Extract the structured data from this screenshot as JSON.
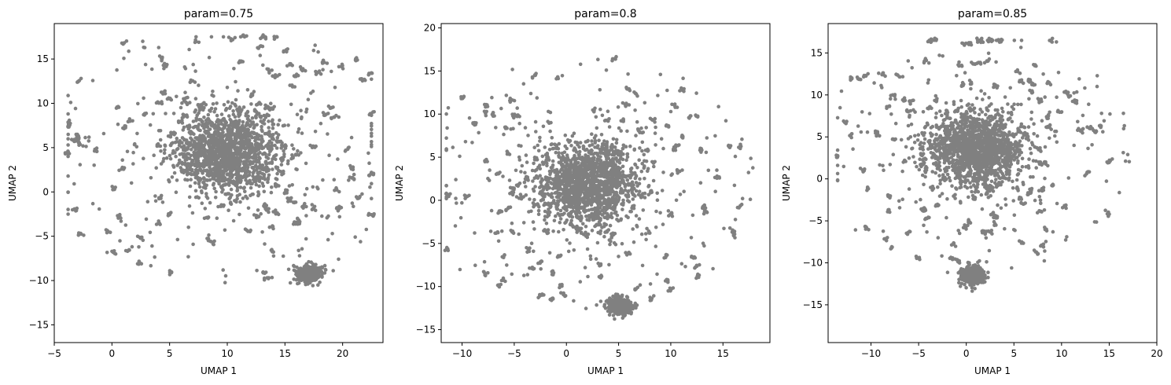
{
  "chart_data": [
    {
      "type": "scatter",
      "title": "param=0.75",
      "xlabel": "UMAP 1",
      "ylabel": "UMAP 2",
      "xlim": [
        -5.0,
        23.5
      ],
      "ylim": [
        -17.0,
        19.0
      ],
      "xticks": [
        -5,
        0,
        5,
        10,
        15,
        20
      ],
      "yticks": [
        -15,
        -10,
        -5,
        0,
        5,
        10,
        15
      ],
      "color": "#808080",
      "clusters": [
        {
          "cx": 10.0,
          "cy": 4.5,
          "sx": 2.3,
          "sy": 2.3,
          "n": 1500
        },
        {
          "cx": 17.1,
          "cy": -9.2,
          "sx": 0.55,
          "sy": 0.45,
          "n": 400
        }
      ],
      "scatter_range": {
        "x": [
          -3.8,
          22.5
        ],
        "y": [
          -15.5,
          17.5
        ]
      },
      "scatter_count": 320
    },
    {
      "type": "scatter",
      "title": "param=0.8",
      "xlabel": "UMAP 1",
      "ylabel": "UMAP 2",
      "xlim": [
        -12.0,
        19.5
      ],
      "ylim": [
        -16.5,
        20.5
      ],
      "xticks": [
        -10,
        -5,
        0,
        5,
        10,
        15
      ],
      "yticks": [
        -15,
        -10,
        -5,
        0,
        5,
        10,
        15,
        20
      ],
      "color": "#808080",
      "clusters": [
        {
          "cx": 2.0,
          "cy": 2.0,
          "sx": 2.4,
          "sy": 2.4,
          "n": 1500
        },
        {
          "cx": 5.1,
          "cy": -12.3,
          "sx": 0.55,
          "sy": 0.5,
          "n": 400
        }
      ],
      "scatter_range": {
        "x": [
          -11.5,
          18.5
        ],
        "y": [
          -15.5,
          18.5
        ]
      },
      "scatter_count": 320
    },
    {
      "type": "scatter",
      "title": "param=0.85",
      "xlabel": "UMAP 1",
      "ylabel": "UMAP 2",
      "xlim": [
        -14.5,
        20.0
      ],
      "ylim": [
        -19.5,
        18.5
      ],
      "xticks": [
        -10,
        -5,
        0,
        5,
        10,
        15,
        20
      ],
      "yticks": [
        -15,
        -10,
        -5,
        0,
        5,
        10,
        15
      ],
      "color": "#808080",
      "clusters": [
        {
          "cx": 1.0,
          "cy": 3.5,
          "sx": 2.5,
          "sy": 2.2,
          "n": 1500
        },
        {
          "cx": 0.6,
          "cy": -11.5,
          "sx": 0.6,
          "sy": 0.55,
          "n": 400
        }
      ],
      "scatter_range": {
        "x": [
          -13.5,
          18.5
        ],
        "y": [
          -18.0,
          16.5
        ]
      },
      "scatter_count": 320
    }
  ]
}
